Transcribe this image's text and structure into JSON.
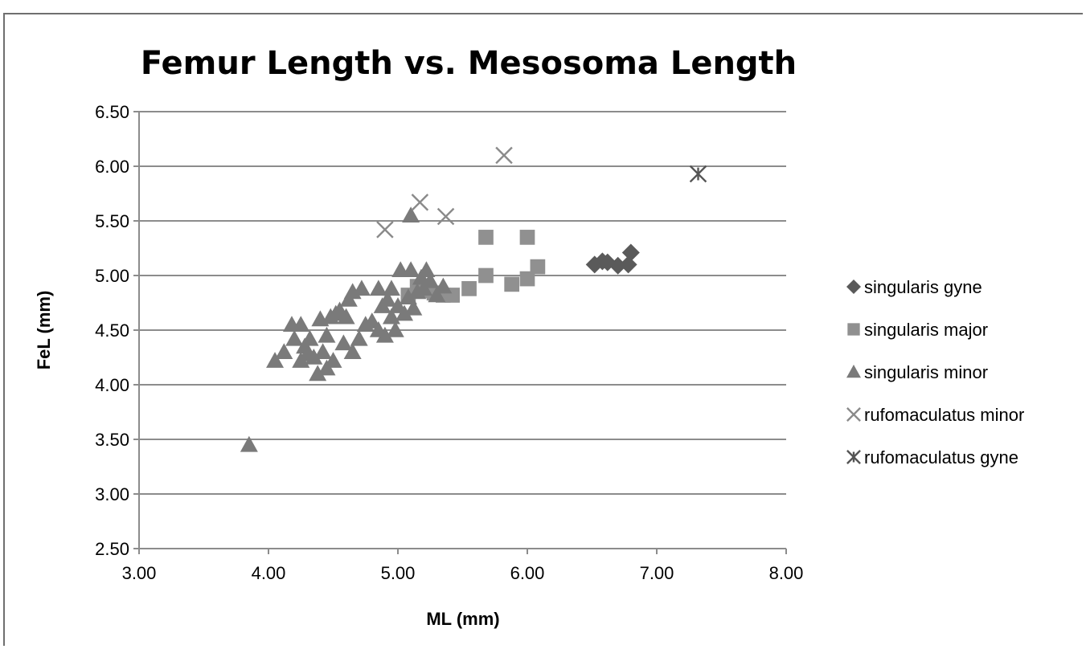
{
  "chart_data": {
    "type": "scatter",
    "title": "Femur Length vs. Mesosoma Length",
    "xlabel": "ML (mm)",
    "ylabel": "FeL (mm)",
    "xlim": [
      3.0,
      8.0
    ],
    "ylim": [
      2.5,
      6.5
    ],
    "x_ticks": [
      "3.00",
      "4.00",
      "5.00",
      "6.00",
      "7.00",
      "8.00"
    ],
    "y_ticks": [
      "2.50",
      "3.00",
      "3.50",
      "4.00",
      "4.50",
      "5.00",
      "5.50",
      "6.00",
      "6.50"
    ],
    "grid": "horizontal",
    "legend_position": "right",
    "series": [
      {
        "name": "singularis gyne",
        "marker": "diamond",
        "color": "#5a5a5a",
        "points": [
          [
            6.52,
            5.1
          ],
          [
            6.58,
            5.13
          ],
          [
            6.62,
            5.12
          ],
          [
            6.7,
            5.09
          ],
          [
            6.78,
            5.1
          ],
          [
            6.8,
            5.21
          ]
        ]
      },
      {
        "name": "singularis major",
        "marker": "square",
        "color": "#909090",
        "points": [
          [
            5.2,
            4.86
          ],
          [
            5.28,
            4.84
          ],
          [
            5.35,
            4.82
          ],
          [
            5.42,
            4.82
          ],
          [
            5.55,
            4.88
          ],
          [
            5.68,
            5.0
          ],
          [
            5.68,
            5.35
          ],
          [
            5.88,
            4.92
          ],
          [
            6.0,
            4.97
          ],
          [
            6.0,
            5.35
          ],
          [
            6.08,
            5.08
          ],
          [
            5.15,
            4.9
          ],
          [
            5.08,
            4.82
          ]
        ]
      },
      {
        "name": "singularis minor",
        "marker": "triangle",
        "color": "#7a7a7a",
        "points": [
          [
            3.85,
            3.45
          ],
          [
            4.05,
            4.22
          ],
          [
            4.12,
            4.3
          ],
          [
            4.18,
            4.55
          ],
          [
            4.2,
            4.42
          ],
          [
            4.25,
            4.22
          ],
          [
            4.25,
            4.55
          ],
          [
            4.28,
            4.35
          ],
          [
            4.3,
            4.28
          ],
          [
            4.32,
            4.42
          ],
          [
            4.35,
            4.25
          ],
          [
            4.38,
            4.1
          ],
          [
            4.4,
            4.6
          ],
          [
            4.42,
            4.3
          ],
          [
            4.45,
            4.45
          ],
          [
            4.45,
            4.15
          ],
          [
            4.48,
            4.62
          ],
          [
            4.5,
            4.22
          ],
          [
            4.52,
            4.65
          ],
          [
            4.55,
            4.68
          ],
          [
            4.58,
            4.38
          ],
          [
            4.6,
            4.62
          ],
          [
            4.62,
            4.78
          ],
          [
            4.65,
            4.3
          ],
          [
            4.65,
            4.85
          ],
          [
            4.7,
            4.42
          ],
          [
            4.72,
            4.88
          ],
          [
            4.75,
            4.55
          ],
          [
            4.8,
            4.58
          ],
          [
            4.85,
            4.5
          ],
          [
            4.85,
            4.88
          ],
          [
            4.88,
            4.72
          ],
          [
            4.9,
            4.45
          ],
          [
            4.92,
            4.78
          ],
          [
            4.95,
            4.62
          ],
          [
            4.98,
            4.5
          ],
          [
            5.0,
            4.72
          ],
          [
            5.02,
            5.05
          ],
          [
            5.05,
            4.65
          ],
          [
            5.08,
            4.8
          ],
          [
            5.1,
            5.55
          ],
          [
            5.1,
            5.05
          ],
          [
            5.12,
            4.7
          ],
          [
            5.15,
            4.85
          ],
          [
            5.18,
            4.98
          ],
          [
            5.2,
            4.88
          ],
          [
            5.22,
            5.05
          ],
          [
            5.25,
            4.95
          ],
          [
            5.3,
            4.82
          ],
          [
            5.35,
            4.9
          ],
          [
            4.95,
            4.88
          ]
        ]
      },
      {
        "name": "rufomaculatus minor",
        "marker": "x",
        "color": "#8a8a8a",
        "points": [
          [
            4.9,
            5.42
          ],
          [
            5.17,
            5.67
          ],
          [
            5.37,
            5.54
          ],
          [
            5.82,
            6.1
          ]
        ]
      },
      {
        "name": "rufomaculatus gyne",
        "marker": "star",
        "color": "#555555",
        "points": [
          [
            7.32,
            5.93
          ]
        ]
      }
    ]
  }
}
